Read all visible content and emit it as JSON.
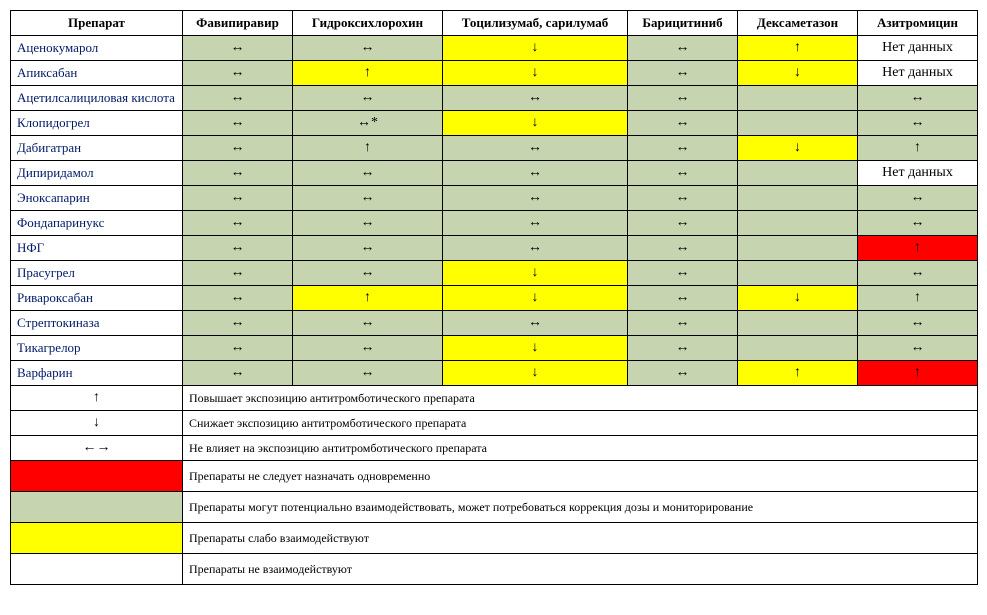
{
  "colors": {
    "green": "#c6d5b0",
    "yellow": "#ffff00",
    "red": "#ff0000",
    "white": "#ffffff"
  },
  "columns": [
    "Препарат",
    "Фавипиравир",
    "Гидроксихлорохин",
    "Тоцилизумаб, сарилумаб",
    "Барицитиниб",
    "Дексаметазон",
    "Азитромицин"
  ],
  "rows": [
    {
      "label": "Аценокумарол",
      "cells": [
        {
          "v": "↔",
          "c": "green"
        },
        {
          "v": "↔",
          "c": "green"
        },
        {
          "v": "↓",
          "c": "yellow"
        },
        {
          "v": "↔",
          "c": "green"
        },
        {
          "v": "↑",
          "c": "yellow"
        },
        {
          "v": "Нет данных",
          "c": "white"
        }
      ]
    },
    {
      "label": "Апиксабан",
      "cells": [
        {
          "v": "↔",
          "c": "green"
        },
        {
          "v": "↑",
          "c": "yellow"
        },
        {
          "v": "↓",
          "c": "yellow"
        },
        {
          "v": "↔",
          "c": "green"
        },
        {
          "v": "↓",
          "c": "yellow"
        },
        {
          "v": "Нет данных",
          "c": "white"
        }
      ]
    },
    {
      "label": "Ацетилсалициловая кислота",
      "cells": [
        {
          "v": "↔",
          "c": "green"
        },
        {
          "v": "↔",
          "c": "green"
        },
        {
          "v": "↔",
          "c": "green"
        },
        {
          "v": "↔",
          "c": "green"
        },
        {
          "v": "",
          "c": "green"
        },
        {
          "v": "↔",
          "c": "green"
        }
      ]
    },
    {
      "label": "Клопидогрел",
      "cells": [
        {
          "v": "↔",
          "c": "green"
        },
        {
          "v": "↔*",
          "c": "green"
        },
        {
          "v": "↓",
          "c": "yellow"
        },
        {
          "v": "↔",
          "c": "green"
        },
        {
          "v": "",
          "c": "green"
        },
        {
          "v": "↔",
          "c": "green"
        }
      ]
    },
    {
      "label": "Дабигатран",
      "cells": [
        {
          "v": "↔",
          "c": "green"
        },
        {
          "v": "↑",
          "c": "green"
        },
        {
          "v": "↔",
          "c": "green"
        },
        {
          "v": "↔",
          "c": "green"
        },
        {
          "v": "↓",
          "c": "yellow"
        },
        {
          "v": "↑",
          "c": "green"
        }
      ]
    },
    {
      "label": "Дипиридамол",
      "cells": [
        {
          "v": "↔",
          "c": "green"
        },
        {
          "v": "↔",
          "c": "green"
        },
        {
          "v": "↔",
          "c": "green"
        },
        {
          "v": "↔",
          "c": "green"
        },
        {
          "v": "",
          "c": "green"
        },
        {
          "v": "Нет данных",
          "c": "white"
        }
      ]
    },
    {
      "label": "Эноксапарин",
      "cells": [
        {
          "v": "↔",
          "c": "green"
        },
        {
          "v": "↔",
          "c": "green"
        },
        {
          "v": "↔",
          "c": "green"
        },
        {
          "v": "↔",
          "c": "green"
        },
        {
          "v": "",
          "c": "green"
        },
        {
          "v": "↔",
          "c": "green"
        }
      ]
    },
    {
      "label": "Фондапаринукс",
      "cells": [
        {
          "v": "↔",
          "c": "green"
        },
        {
          "v": "↔",
          "c": "green"
        },
        {
          "v": "↔",
          "c": "green"
        },
        {
          "v": "↔",
          "c": "green"
        },
        {
          "v": "",
          "c": "green"
        },
        {
          "v": "↔",
          "c": "green"
        }
      ]
    },
    {
      "label": "НФГ",
      "cells": [
        {
          "v": "↔",
          "c": "green"
        },
        {
          "v": "↔",
          "c": "green"
        },
        {
          "v": "↔",
          "c": "green"
        },
        {
          "v": "↔",
          "c": "green"
        },
        {
          "v": "",
          "c": "green"
        },
        {
          "v": "↑",
          "c": "red"
        }
      ]
    },
    {
      "label": "Прасугрел",
      "cells": [
        {
          "v": "↔",
          "c": "green"
        },
        {
          "v": "↔",
          "c": "green"
        },
        {
          "v": "↓",
          "c": "yellow"
        },
        {
          "v": "↔",
          "c": "green"
        },
        {
          "v": "",
          "c": "green"
        },
        {
          "v": "↔",
          "c": "green"
        }
      ]
    },
    {
      "label": "Ривароксабан",
      "cells": [
        {
          "v": "↔",
          "c": "green"
        },
        {
          "v": "↑",
          "c": "yellow"
        },
        {
          "v": "↓",
          "c": "yellow"
        },
        {
          "v": "↔",
          "c": "green"
        },
        {
          "v": "↓",
          "c": "yellow"
        },
        {
          "v": "↑",
          "c": "green"
        }
      ]
    },
    {
      "label": "Стрептокиназа",
      "cells": [
        {
          "v": "↔",
          "c": "green"
        },
        {
          "v": "↔",
          "c": "green"
        },
        {
          "v": "↔",
          "c": "green"
        },
        {
          "v": "↔",
          "c": "green"
        },
        {
          "v": "",
          "c": "green"
        },
        {
          "v": "↔",
          "c": "green"
        }
      ]
    },
    {
      "label": "Тикагрелор",
      "cells": [
        {
          "v": "↔",
          "c": "green"
        },
        {
          "v": "↔",
          "c": "green"
        },
        {
          "v": "↓",
          "c": "yellow"
        },
        {
          "v": "↔",
          "c": "green"
        },
        {
          "v": "",
          "c": "green"
        },
        {
          "v": "↔",
          "c": "green"
        }
      ]
    },
    {
      "label": "Варфарин",
      "cells": [
        {
          "v": "↔",
          "c": "green"
        },
        {
          "v": "↔",
          "c": "green"
        },
        {
          "v": "↓",
          "c": "yellow"
        },
        {
          "v": "↔",
          "c": "green"
        },
        {
          "v": "↑",
          "c": "yellow"
        },
        {
          "v": "↑",
          "c": "red"
        }
      ]
    }
  ],
  "legend": [
    {
      "type": "symbol",
      "symbol": "↑",
      "text": "Повышает экспозицию антитромботического препарата"
    },
    {
      "type": "symbol",
      "symbol": "↓",
      "text": "Снижает экспозицию антитромботического препарата"
    },
    {
      "type": "symbol",
      "symbol": "←→",
      "text": "Не влияет на экспозицию антитромботического препарата"
    },
    {
      "type": "swatch",
      "color": "red",
      "text": "Препараты не следует назначать одновременно"
    },
    {
      "type": "swatch",
      "color": "green",
      "text": "Препараты могут потенциально взаимодействовать, может потребоваться коррекция дозы и мониторирование"
    },
    {
      "type": "swatch",
      "color": "yellow",
      "text": "Препараты слабо взаимодействуют"
    },
    {
      "type": "swatch",
      "color": "white",
      "text": "Препараты не взаимодействуют"
    }
  ]
}
